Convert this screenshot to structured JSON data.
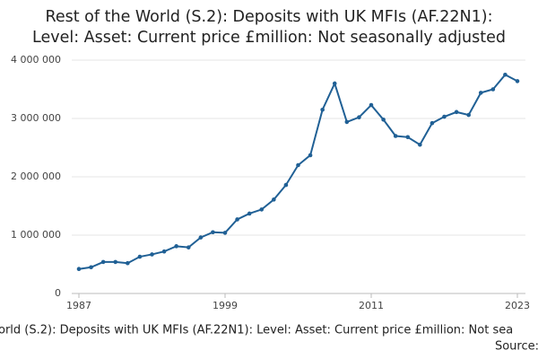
{
  "chart_data": {
    "type": "line",
    "title": [
      "Rest of the World (S.2): Deposits with UK MFIs (AF.22N1):",
      "Level: Asset: Current price £million: Not seasonally adjusted"
    ],
    "footer": "orld (S.2): Deposits with UK MFIs (AF.22N1): Level: Asset: Current price £million: Not sea",
    "source": "Source:",
    "x": [
      1987,
      1988,
      1989,
      1990,
      1991,
      1992,
      1993,
      1994,
      1995,
      1996,
      1997,
      1998,
      1999,
      2000,
      2001,
      2002,
      2003,
      2004,
      2005,
      2006,
      2007,
      2008,
      2009,
      2010,
      2011,
      2012,
      2013,
      2014,
      2015,
      2016,
      2017,
      2018,
      2019,
      2020,
      2021,
      2022,
      2023
    ],
    "series": [
      {
        "color": "#206095",
        "values": [
          420000,
          450000,
          540000,
          540000,
          520000,
          630000,
          670000,
          720000,
          810000,
          790000,
          960000,
          1050000,
          1040000,
          1270000,
          1370000,
          1440000,
          1610000,
          1860000,
          2200000,
          2370000,
          3150000,
          3600000,
          2940000,
          3020000,
          3230000,
          2980000,
          2700000,
          2680000,
          2550000,
          2920000,
          3030000,
          3110000,
          3060000,
          3440000,
          3500000,
          3750000,
          3640000
        ]
      }
    ],
    "xlim": [
      1987,
      2023
    ],
    "xticks": [
      1987,
      1999,
      2011,
      2023
    ],
    "ylim": [
      0,
      4000000
    ],
    "yticks": [
      0,
      {
        "value": 1000000,
        "label": "1 000 000"
      },
      {
        "value": 2000000,
        "label": "2 000 000"
      },
      {
        "value": 3000000,
        "label": "3 000 000"
      },
      {
        "value": 4000000,
        "label": "4 000 000"
      }
    ],
    "grid": true
  }
}
